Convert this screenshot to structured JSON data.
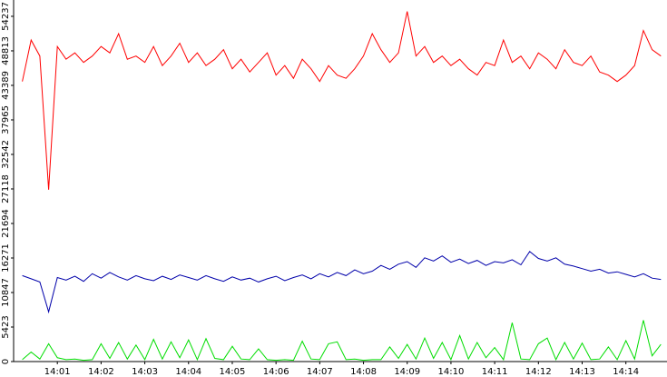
{
  "chart_data": {
    "type": "line",
    "x": [
      0.2,
      0.4,
      0.6,
      0.8,
      1.0,
      1.2,
      1.4,
      1.6,
      1.8,
      2.0,
      2.2,
      2.4,
      2.6,
      2.8,
      3.0,
      3.2,
      3.4,
      3.6,
      3.8,
      4.0,
      4.2,
      4.4,
      4.6,
      4.8,
      5.0,
      5.2,
      5.4,
      5.6,
      5.8,
      6.0,
      6.2,
      6.4,
      6.6,
      6.8,
      7.0,
      7.2,
      7.4,
      7.6,
      7.8,
      8.0,
      8.2,
      8.4,
      8.6,
      8.8,
      9.0,
      9.2,
      9.4,
      9.6,
      9.8,
      10.0,
      10.2,
      10.4,
      10.6,
      10.8,
      11.0,
      11.2,
      11.4,
      11.6,
      11.8,
      12.0,
      12.2,
      12.4,
      12.6,
      12.8,
      13.0,
      13.2,
      13.4,
      13.6,
      13.8,
      14.0,
      14.2,
      14.4,
      14.6,
      14.8
    ],
    "series": [
      {
        "name": "red",
        "color": "#ff0000",
        "values": [
          44000,
          50500,
          48000,
          27000,
          49500,
          47500,
          48500,
          47000,
          48000,
          49500,
          48500,
          51500,
          47500,
          48000,
          47000,
          49500,
          46500,
          48000,
          50000,
          47000,
          48500,
          46500,
          47500,
          49000,
          46000,
          47500,
          45500,
          47000,
          48500,
          45000,
          46500,
          44500,
          47500,
          46000,
          44000,
          46500,
          45000,
          44500,
          46000,
          48000,
          51500,
          49000,
          47000,
          48500,
          55000,
          48000,
          49500,
          47000,
          48000,
          46500,
          47500,
          46000,
          45000,
          47000,
          46500,
          50500,
          47000,
          48000,
          46000,
          48500,
          47500,
          46000,
          49000,
          47000,
          46500,
          48000,
          45500,
          45000,
          44000,
          45000,
          46500,
          52000,
          49000,
          48000
        ]
      },
      {
        "name": "blue",
        "color": "#0000aa",
        "values": [
          13500,
          13000,
          12500,
          7800,
          13200,
          12800,
          13400,
          12600,
          13800,
          13100,
          14000,
          13300,
          12800,
          13500,
          13000,
          12700,
          13400,
          12900,
          13600,
          13200,
          12800,
          13500,
          13000,
          12600,
          13300,
          12800,
          13100,
          12500,
          13000,
          13400,
          12700,
          13200,
          13600,
          13000,
          13800,
          13300,
          14000,
          13500,
          14400,
          13800,
          14200,
          15100,
          14500,
          15300,
          15700,
          14800,
          16300,
          15800,
          16600,
          15600,
          16100,
          15400,
          15900,
          15100,
          15700,
          15500,
          16000,
          15200,
          17300,
          16200,
          15800,
          16300,
          15300,
          15000,
          14600,
          14200,
          14500,
          13900,
          14100,
          13700,
          13300,
          13800,
          13100,
          12900
        ]
      },
      {
        "name": "green",
        "color": "#00dd00",
        "values": [
          300,
          1500,
          400,
          2800,
          600,
          300,
          400,
          200,
          300,
          2800,
          500,
          3000,
          400,
          2600,
          300,
          3500,
          400,
          3100,
          600,
          3400,
          300,
          3600,
          500,
          300,
          2400,
          400,
          300,
          2000,
          300,
          200,
          300,
          200,
          3200,
          400,
          300,
          2800,
          3100,
          300,
          400,
          200,
          300,
          300,
          2300,
          500,
          2700,
          400,
          3700,
          500,
          3000,
          300,
          4100,
          400,
          3000,
          600,
          2200,
          300,
          6100,
          400,
          300,
          2800,
          3700,
          300,
          3000,
          400,
          2900,
          300,
          400,
          2300,
          300,
          3300,
          400,
          6500,
          900,
          2700
        ]
      }
    ],
    "xlim": [
      0,
      14.94
    ],
    "ylim": [
      0,
      56800
    ],
    "xticks": [
      {
        "value": 1,
        "label": "14:01"
      },
      {
        "value": 2,
        "label": "14:02"
      },
      {
        "value": 3,
        "label": "14:03"
      },
      {
        "value": 4,
        "label": "14:04"
      },
      {
        "value": 5,
        "label": "14:05"
      },
      {
        "value": 6,
        "label": "14:06"
      },
      {
        "value": 7,
        "label": "14:07"
      },
      {
        "value": 8,
        "label": "14:08"
      },
      {
        "value": 9,
        "label": "14:09"
      },
      {
        "value": 10,
        "label": "14:10"
      },
      {
        "value": 11,
        "label": "14:11"
      },
      {
        "value": 12,
        "label": "14:12"
      },
      {
        "value": 13,
        "label": "14:13"
      },
      {
        "value": 14,
        "label": "14:14"
      }
    ],
    "yticks": [
      0,
      5423,
      10847,
      16271,
      21694,
      27118,
      32542,
      37965,
      43389,
      48813,
      54237
    ]
  }
}
